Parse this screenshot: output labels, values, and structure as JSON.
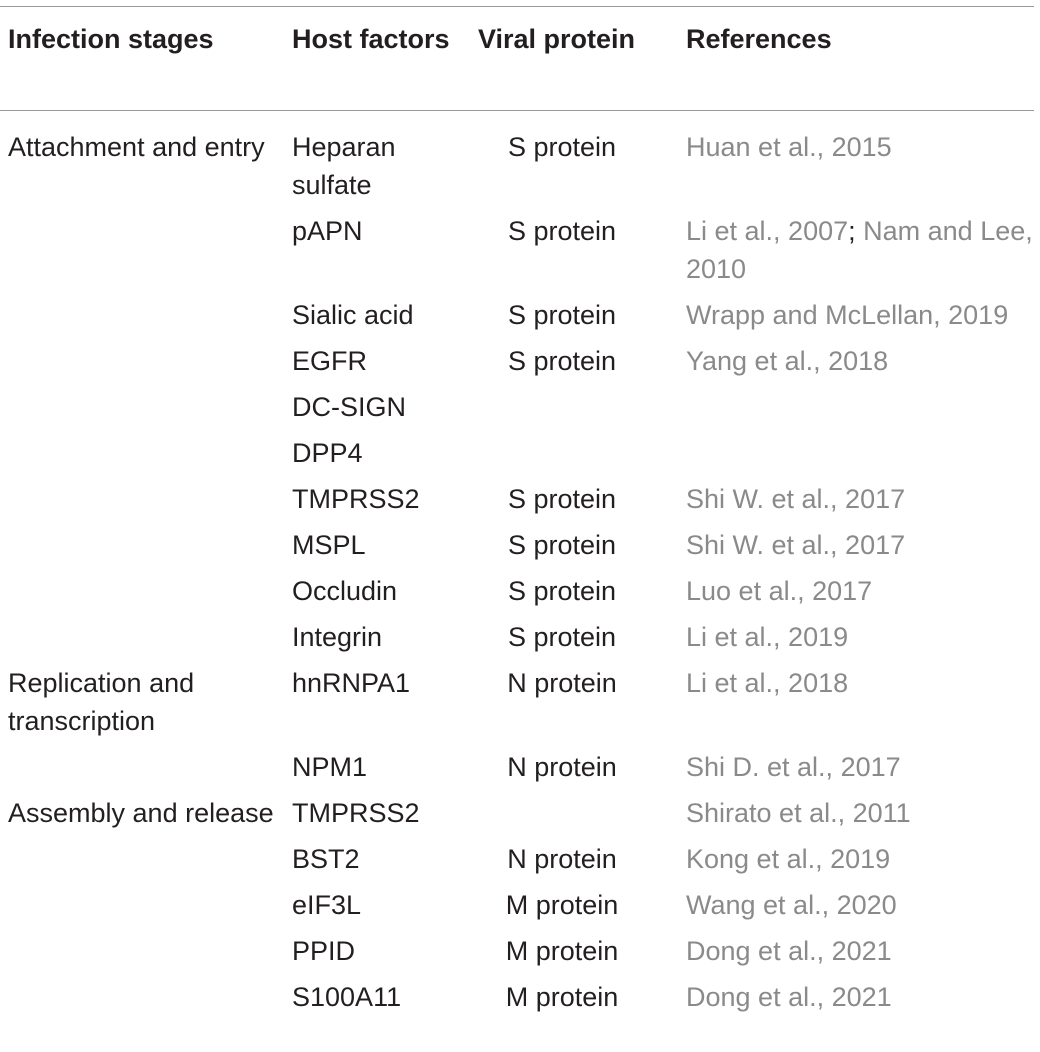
{
  "headers": {
    "stage": "Infection stages",
    "host": "Host factors",
    "viral": "Viral protein",
    "refs": "References"
  },
  "rows": [
    {
      "stage": "Attachment and entry",
      "host": "Heparan sulfate",
      "viral": "S protein",
      "ref": "Huan et al., 2015",
      "ref2": ""
    },
    {
      "stage": "",
      "host": "pAPN",
      "viral": "S protein",
      "ref": "Li et al., 2007",
      "ref2": "Nam and Lee, 2010"
    },
    {
      "stage": "",
      "host": "Sialic acid",
      "viral": "S protein",
      "ref": "Wrapp and McLellan, 2019",
      "ref2": ""
    },
    {
      "stage": "",
      "host": "EGFR",
      "viral": "S protein",
      "ref": "Yang et al., 2018",
      "ref2": ""
    },
    {
      "stage": "",
      "host": "DC-SIGN",
      "viral": "",
      "ref": "",
      "ref2": ""
    },
    {
      "stage": "",
      "host": "DPP4",
      "viral": "",
      "ref": "",
      "ref2": ""
    },
    {
      "stage": "",
      "host": "TMPRSS2",
      "viral": "S protein",
      "ref": "Shi W. et al., 2017",
      "ref2": ""
    },
    {
      "stage": "",
      "host": "MSPL",
      "viral": "S protein",
      "ref": "Shi W. et al., 2017",
      "ref2": ""
    },
    {
      "stage": "",
      "host": "Occludin",
      "viral": "S protein",
      "ref": "Luo et al., 2017",
      "ref2": ""
    },
    {
      "stage": "",
      "host": "Integrin",
      "viral": "S protein",
      "ref": "Li et al., 2019",
      "ref2": ""
    },
    {
      "stage": "Replication and transcription",
      "host": "hnRNPA1",
      "viral": "N protein",
      "ref": "Li et al., 2018",
      "ref2": ""
    },
    {
      "stage": "",
      "host": "NPM1",
      "viral": "N protein",
      "ref": "Shi D. et al., 2017",
      "ref2": ""
    },
    {
      "stage": "Assembly and release",
      "host": "TMPRSS2",
      "viral": "",
      "ref": "Shirato et al., 2011",
      "ref2": ""
    },
    {
      "stage": "",
      "host": "BST2",
      "viral": "N protein",
      "ref": "Kong et al., 2019",
      "ref2": ""
    },
    {
      "stage": "",
      "host": "eIF3L",
      "viral": "M protein",
      "ref": "Wang et al., 2020",
      "ref2": ""
    },
    {
      "stage": "",
      "host": "PPID",
      "viral": "M protein",
      "ref": "Dong et al., 2021",
      "ref2": ""
    },
    {
      "stage": "",
      "host": "S100A11",
      "viral": "M protein",
      "ref": "Dong et al., 2021",
      "ref2": ""
    }
  ]
}
